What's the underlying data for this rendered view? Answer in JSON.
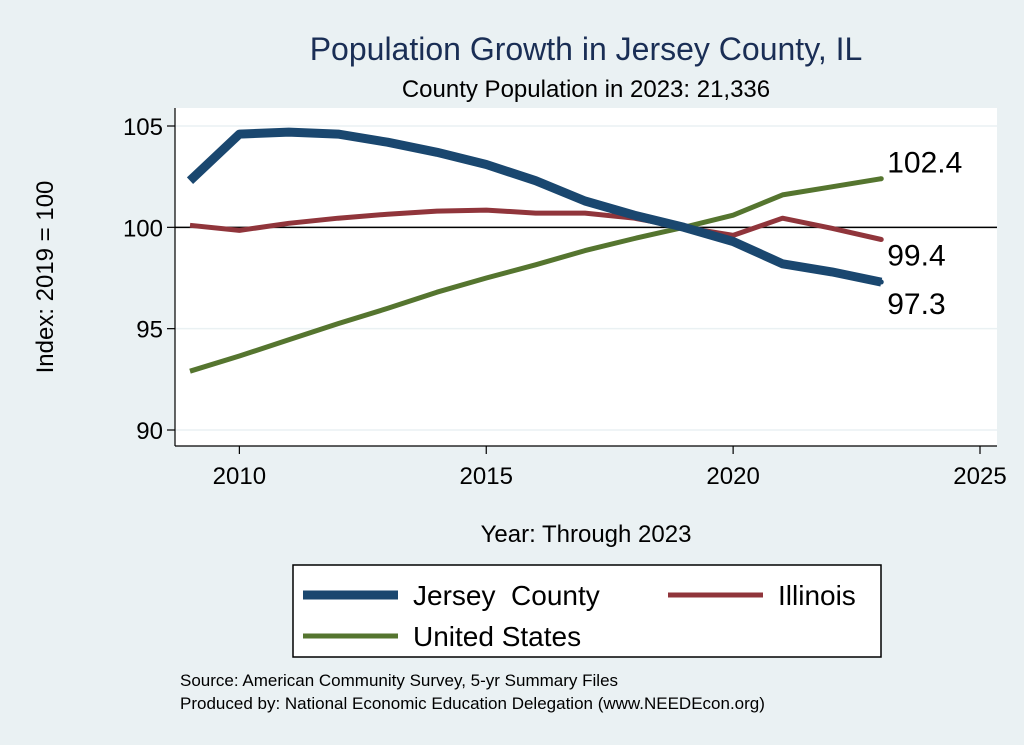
{
  "chart_data": {
    "type": "line",
    "title": "Population Growth in Jersey County, IL",
    "subtitle": "County Population in 2023: 21,336",
    "xlabel": "Year: Through 2023",
    "ylabel": "Index: 2019 = 100",
    "xlim": [
      2009,
      2025
    ],
    "ylim": [
      90,
      105
    ],
    "xticks": [
      2010,
      2015,
      2020,
      2025
    ],
    "yticks": [
      90,
      95,
      100,
      105
    ],
    "reference_line": 100,
    "grid": true,
    "legend_position": "bottom",
    "x": [
      2009,
      2010,
      2011,
      2012,
      2013,
      2014,
      2015,
      2016,
      2017,
      2018,
      2019,
      2020,
      2021,
      2022,
      2023
    ],
    "series": [
      {
        "name": "Jersey  County",
        "color": "#1a476f",
        "values": [
          102.3,
          104.6,
          104.7,
          104.6,
          104.2,
          103.7,
          103.1,
          102.3,
          101.3,
          100.6,
          100.0,
          99.3,
          98.2,
          97.8,
          97.3
        ],
        "end_label": "97.3"
      },
      {
        "name": "Illinois",
        "color": "#90353b",
        "values": [
          100.1,
          99.85,
          100.2,
          100.45,
          100.65,
          100.8,
          100.85,
          100.7,
          100.7,
          100.45,
          100.0,
          99.6,
          100.45,
          99.95,
          99.4
        ],
        "end_label": "99.4"
      },
      {
        "name": "United States",
        "color": "#55752f",
        "values": [
          92.9,
          93.65,
          94.45,
          95.25,
          96.0,
          96.8,
          97.5,
          98.15,
          98.85,
          99.45,
          100.0,
          100.6,
          101.6,
          102.0,
          102.4
        ],
        "end_label": "102.4"
      }
    ]
  },
  "notes": {
    "source": "Source: American Community Survey, 5-yr Summary Files",
    "produced": "Produced by: National Economic Education Delegation (www.NEEDEcon.org)"
  }
}
